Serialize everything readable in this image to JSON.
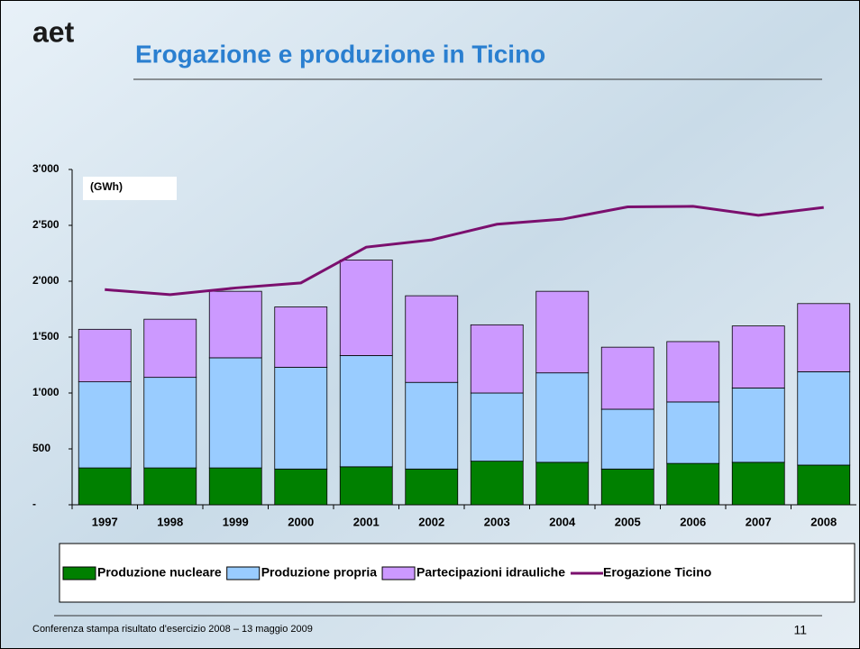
{
  "logo": "aet",
  "chart_data": {
    "type": "bar",
    "stacked": true,
    "title": "Erogazione e produzione in Ticino",
    "annotation": "(GWh)",
    "categories": [
      "1997",
      "1998",
      "1999",
      "2000",
      "2001",
      "2002",
      "2003",
      "2004",
      "2005",
      "2006",
      "2007",
      "2008"
    ],
    "series": [
      {
        "name": "Produzione nucleare",
        "type": "bar",
        "color": "#008000",
        "values": [
          330,
          330,
          330,
          320,
          340,
          320,
          390,
          380,
          320,
          370,
          380,
          355
        ]
      },
      {
        "name": "Produzione propria",
        "type": "bar",
        "color": "#99ccff",
        "values": [
          770,
          810,
          985,
          910,
          995,
          775,
          610,
          800,
          535,
          550,
          665,
          835
        ]
      },
      {
        "name": "Partecipazioni idrauliche",
        "type": "bar",
        "color": "#cc99ff",
        "values": [
          470,
          520,
          595,
          540,
          855,
          775,
          610,
          730,
          555,
          540,
          555,
          610
        ]
      },
      {
        "name": "Erogazione Ticino",
        "type": "line",
        "color": "#7b0f6e",
        "values": [
          1925,
          1880,
          1940,
          1985,
          2305,
          2370,
          2510,
          2555,
          2665,
          2670,
          2590,
          2660
        ]
      }
    ],
    "ylim": [
      0,
      3000
    ],
    "yticks": [
      {
        "value": 0,
        "label": "-"
      },
      500,
      {
        "value": 1000,
        "label": "1'000"
      },
      {
        "value": 1500,
        "label": "1'500"
      },
      {
        "value": 2000,
        "label": "2'000"
      },
      {
        "value": 2500,
        "label": "2'500"
      },
      {
        "value": 3000,
        "label": "3'000"
      }
    ],
    "legend": "bottom"
  },
  "footer": "Conferenza stampa risultato d'esercizio 2008 – 13 maggio 2009",
  "page_number": "11"
}
